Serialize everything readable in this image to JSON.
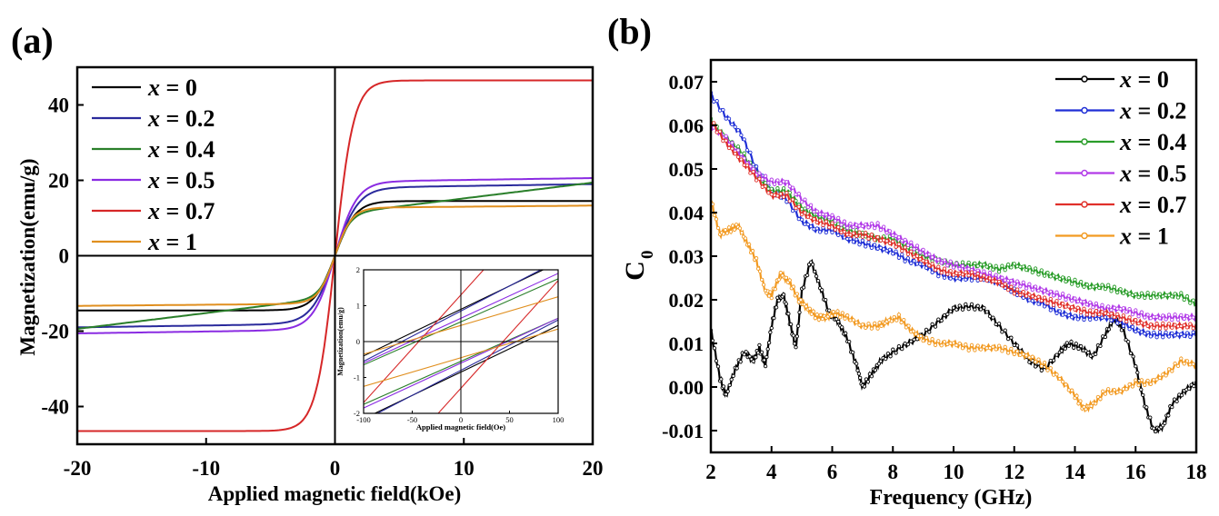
{
  "chart_data": [
    {
      "panel_label": "(a)",
      "type": "line",
      "title": "",
      "xlabel": "Applied magnetic field(kOe)",
      "ylabel": "Magnetization(emu/g)",
      "xlim": [
        -20,
        20
      ],
      "ylim": [
        -50,
        50
      ],
      "xticks": [
        -20,
        -10,
        0,
        10,
        20
      ],
      "yticks": [
        -40,
        -20,
        0,
        20,
        40
      ],
      "legend_position": "top-left",
      "series": [
        {
          "name": "x = 0",
          "label_var": "x",
          "label_val": " = 0",
          "color": "#000000",
          "Ms": 14.5,
          "a": 1.6,
          "chi": 0
        },
        {
          "name": "x = 0.2",
          "label_var": "x",
          "label_val": " = 0.2",
          "color": "#2a2a9c",
          "Ms": 18.0,
          "a": 1.8,
          "chi": 0.05
        },
        {
          "name": "x = 0.4",
          "label_var": "x",
          "label_val": " = 0.4",
          "color": "#2a7f2a",
          "Ms": 11.0,
          "a": 1.2,
          "chi": 0.42
        },
        {
          "name": "x = 0.5",
          "label_var": "x",
          "label_val": " = 0.5",
          "color": "#8a2be2",
          "Ms": 19.6,
          "a": 1.7,
          "chi": 0.05
        },
        {
          "name": "x = 0.7",
          "label_var": "x",
          "label_val": " = 0.7",
          "color": "#d62728",
          "Ms": 46.5,
          "a": 1.45,
          "chi": 0
        },
        {
          "name": "x = 1",
          "label_var": "x",
          "label_val": " = 1",
          "color": "#e08f1f",
          "Ms": 12.7,
          "a": 1.3,
          "chi": 0.03
        }
      ],
      "inset": {
        "xlabel": "Applied magnetic field(Oe)",
        "ylabel": "Magnetization(emu/g)",
        "xlim": [
          -100,
          100
        ],
        "ylim": [
          -2,
          2
        ],
        "xticks": [
          -100,
          -50,
          0,
          50,
          100
        ],
        "yticks": [
          -2,
          -1,
          0,
          1,
          2
        ]
      }
    },
    {
      "panel_label": "(b)",
      "type": "line",
      "title": "",
      "xlabel": "Frequency (GHz)",
      "ylabel": "C",
      "ylabel_sub": "0",
      "xlim": [
        2,
        18
      ],
      "ylim": [
        -0.015,
        0.075
      ],
      "xticks": [
        2,
        4,
        6,
        8,
        10,
        12,
        14,
        16,
        18
      ],
      "yticks": [
        "-0.01",
        "0.00",
        "0.01",
        "0.02",
        "0.03",
        "0.04",
        "0.05",
        "0.06",
        "0.07"
      ],
      "legend_position": "top-right",
      "series": [
        {
          "name": "x = 0",
          "label_var": "x",
          "label_val": " = 0",
          "color": "#000000",
          "x": [
            2,
            2.3,
            2.5,
            2.8,
            3.1,
            3.4,
            3.6,
            3.8,
            4.0,
            4.2,
            4.4,
            4.6,
            4.8,
            5.0,
            5.3,
            5.6,
            5.9,
            6.2,
            6.5,
            6.8,
            7.0,
            7.3,
            7.6,
            8.0,
            8.5,
            9.0,
            9.5,
            10.0,
            10.5,
            11.0,
            11.5,
            12.0,
            12.5,
            13.0,
            13.5,
            13.8,
            14.2,
            14.6,
            15.0,
            15.3,
            15.6,
            16.0,
            16.3,
            16.6,
            16.9,
            17.2,
            17.6,
            18
          ],
          "y": [
            0.013,
            0.002,
            -0.002,
            0.004,
            0.008,
            0.006,
            0.009,
            0.005,
            0.014,
            0.02,
            0.021,
            0.015,
            0.009,
            0.022,
            0.029,
            0.023,
            0.017,
            0.015,
            0.011,
            0.005,
            0.0,
            0.003,
            0.006,
            0.008,
            0.01,
            0.012,
            0.015,
            0.018,
            0.0185,
            0.018,
            0.014,
            0.01,
            0.006,
            0.004,
            0.008,
            0.01,
            0.009,
            0.007,
            0.012,
            0.016,
            0.013,
            0.005,
            -0.004,
            -0.01,
            -0.009,
            -0.004,
            -0.001,
            0.001
          ]
        },
        {
          "name": "x = 0.2",
          "label_var": "x",
          "label_val": " = 0.2",
          "color": "#1f2fd6",
          "x": [
            2,
            2.5,
            3,
            3.5,
            4,
            4.5,
            5,
            5.5,
            6,
            6.5,
            7,
            7.5,
            8,
            8.5,
            9,
            9.5,
            10,
            10.5,
            11,
            11.5,
            12,
            12.5,
            13,
            13.5,
            14,
            14.5,
            15,
            15.5,
            16,
            16.5,
            17,
            17.5,
            18
          ],
          "y": [
            0.067,
            0.062,
            0.058,
            0.05,
            0.045,
            0.043,
            0.038,
            0.036,
            0.036,
            0.034,
            0.033,
            0.032,
            0.031,
            0.029,
            0.028,
            0.026,
            0.025,
            0.025,
            0.025,
            0.024,
            0.022,
            0.02,
            0.019,
            0.017,
            0.016,
            0.016,
            0.016,
            0.015,
            0.013,
            0.012,
            0.012,
            0.012,
            0.012
          ]
        },
        {
          "name": "x = 0.4",
          "label_var": "x",
          "label_val": " = 0.4",
          "color": "#2a9d2a",
          "x": [
            2,
            2.5,
            3,
            3.5,
            4,
            4.5,
            5,
            5.5,
            6,
            6.5,
            7,
            7.5,
            8,
            8.5,
            9,
            9.5,
            10,
            10.5,
            11,
            11.5,
            12,
            12.5,
            13,
            13.5,
            14,
            14.5,
            15,
            15.5,
            16,
            16.5,
            17,
            17.5,
            18
          ],
          "y": [
            0.061,
            0.057,
            0.054,
            0.049,
            0.045,
            0.045,
            0.041,
            0.039,
            0.038,
            0.036,
            0.035,
            0.034,
            0.034,
            0.032,
            0.03,
            0.029,
            0.028,
            0.028,
            0.028,
            0.027,
            0.028,
            0.027,
            0.026,
            0.025,
            0.024,
            0.023,
            0.023,
            0.022,
            0.021,
            0.021,
            0.021,
            0.021,
            0.019
          ]
        },
        {
          "name": "x = 0.5",
          "label_var": "x",
          "label_val": " = 0.5",
          "color": "#b23be8",
          "x": [
            2,
            2.5,
            3,
            3.5,
            4,
            4.5,
            5,
            5.5,
            6,
            6.5,
            7,
            7.5,
            8,
            8.5,
            9,
            9.5,
            10,
            10.5,
            11,
            11.5,
            12,
            12.5,
            13,
            13.5,
            14,
            14.5,
            15,
            15.5,
            16,
            16.5,
            17,
            17.5,
            18
          ],
          "y": [
            0.06,
            0.057,
            0.053,
            0.049,
            0.047,
            0.047,
            0.043,
            0.04,
            0.039,
            0.037,
            0.037,
            0.037,
            0.035,
            0.033,
            0.031,
            0.029,
            0.028,
            0.027,
            0.026,
            0.025,
            0.024,
            0.023,
            0.022,
            0.021,
            0.02,
            0.019,
            0.018,
            0.018,
            0.017,
            0.016,
            0.016,
            0.016,
            0.016
          ]
        },
        {
          "name": "x = 0.7",
          "label_var": "x",
          "label_val": " = 0.7",
          "color": "#e0302a",
          "x": [
            2,
            2.5,
            3,
            3.5,
            4,
            4.5,
            5,
            5.5,
            6,
            6.5,
            7,
            7.5,
            8,
            8.5,
            9,
            9.5,
            10,
            10.5,
            11,
            11.5,
            12,
            12.5,
            13,
            13.5,
            14,
            14.5,
            15,
            15.5,
            16,
            16.5,
            17,
            17.5,
            18
          ],
          "y": [
            0.061,
            0.056,
            0.052,
            0.048,
            0.044,
            0.044,
            0.04,
            0.038,
            0.037,
            0.035,
            0.035,
            0.034,
            0.033,
            0.031,
            0.029,
            0.027,
            0.026,
            0.026,
            0.025,
            0.024,
            0.022,
            0.021,
            0.02,
            0.019,
            0.018,
            0.017,
            0.017,
            0.016,
            0.015,
            0.014,
            0.014,
            0.014,
            0.014
          ]
        },
        {
          "name": "x = 1",
          "label_var": "x",
          "label_val": " = 1",
          "color": "#f29a22",
          "x": [
            2,
            2.3,
            2.6,
            2.9,
            3.2,
            3.5,
            3.8,
            4.0,
            4.3,
            4.6,
            4.9,
            5.2,
            5.5,
            5.8,
            6.1,
            6.5,
            7,
            7.5,
            7.8,
            8.2,
            8.6,
            9,
            9.5,
            10,
            10.5,
            11,
            11.5,
            12,
            12.5,
            13,
            13.5,
            14,
            14.3,
            14.6,
            15,
            15.5,
            16,
            16.5,
            17,
            17.5,
            18
          ],
          "y": [
            0.043,
            0.035,
            0.036,
            0.037,
            0.033,
            0.029,
            0.022,
            0.021,
            0.026,
            0.024,
            0.02,
            0.018,
            0.016,
            0.016,
            0.017,
            0.016,
            0.014,
            0.014,
            0.015,
            0.016,
            0.013,
            0.011,
            0.01,
            0.01,
            0.009,
            0.009,
            0.009,
            0.008,
            0.007,
            0.005,
            0.002,
            -0.002,
            -0.005,
            -0.004,
            -0.001,
            -0.001,
            0.001,
            0.001,
            0.003,
            0.006,
            0.005
          ]
        }
      ]
    }
  ]
}
